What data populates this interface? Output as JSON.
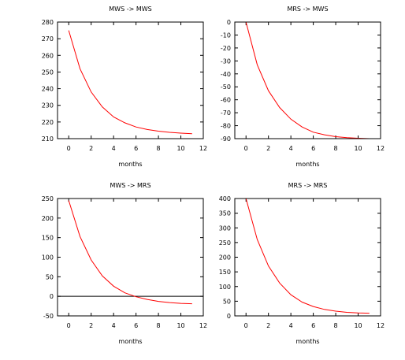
{
  "chart_data": [
    {
      "type": "line",
      "title": "MWS -> MWS",
      "xlabel": "months",
      "ylabel": "",
      "xlim": [
        -1,
        12
      ],
      "ylim": [
        210,
        280
      ],
      "xticks": [
        0,
        2,
        4,
        6,
        8,
        10,
        12
      ],
      "yticks": [
        210,
        220,
        230,
        240,
        250,
        260,
        270,
        280
      ],
      "zero_line": false,
      "series": [
        {
          "x": [
            0,
            1,
            2,
            3,
            4,
            5,
            6,
            7,
            8,
            9,
            10,
            11
          ],
          "values": [
            275,
            252,
            238,
            229,
            223,
            219.5,
            217,
            215.5,
            214.5,
            213.8,
            213.3,
            213
          ]
        }
      ]
    },
    {
      "type": "line",
      "title": "MRS -> MWS",
      "xlabel": "months",
      "ylabel": "",
      "xlim": [
        -1,
        12
      ],
      "ylim": [
        -90,
        0
      ],
      "xticks": [
        0,
        2,
        4,
        6,
        8,
        10,
        12
      ],
      "yticks": [
        -90,
        -80,
        -70,
        -60,
        -50,
        -40,
        -30,
        -20,
        -10,
        0
      ],
      "zero_line": false,
      "series": [
        {
          "x": [
            0,
            1,
            2,
            3,
            4,
            5,
            6,
            7,
            8,
            9,
            10,
            11
          ],
          "values": [
            0,
            -33,
            -53,
            -66,
            -75,
            -81,
            -85,
            -87,
            -88.5,
            -89.3,
            -89.7,
            -90
          ]
        }
      ]
    },
    {
      "type": "line",
      "title": "MWS -> MRS",
      "xlabel": "months",
      "ylabel": "",
      "xlim": [
        -1,
        12
      ],
      "ylim": [
        -50,
        250
      ],
      "xticks": [
        0,
        2,
        4,
        6,
        8,
        10,
        12
      ],
      "yticks": [
        -50,
        0,
        50,
        100,
        150,
        200,
        250
      ],
      "zero_line": true,
      "series": [
        {
          "x": [
            0,
            1,
            2,
            3,
            4,
            5,
            6,
            7,
            8,
            9,
            10,
            11
          ],
          "values": [
            245,
            153,
            93,
            52,
            26,
            9,
            -1,
            -8,
            -13,
            -16,
            -18,
            -19
          ]
        }
      ]
    },
    {
      "type": "line",
      "title": "MRS -> MRS",
      "xlabel": "months",
      "ylabel": "",
      "xlim": [
        -1,
        12
      ],
      "ylim": [
        0,
        400
      ],
      "xticks": [
        0,
        2,
        4,
        6,
        8,
        10,
        12
      ],
      "yticks": [
        0,
        50,
        100,
        150,
        200,
        250,
        300,
        350,
        400
      ],
      "zero_line": false,
      "series": [
        {
          "x": [
            0,
            1,
            2,
            3,
            4,
            5,
            6,
            7,
            8,
            9,
            10,
            11
          ],
          "values": [
            400,
            260,
            170,
            112,
            72,
            47,
            32,
            22,
            16,
            12,
            10,
            9
          ]
        }
      ]
    }
  ]
}
